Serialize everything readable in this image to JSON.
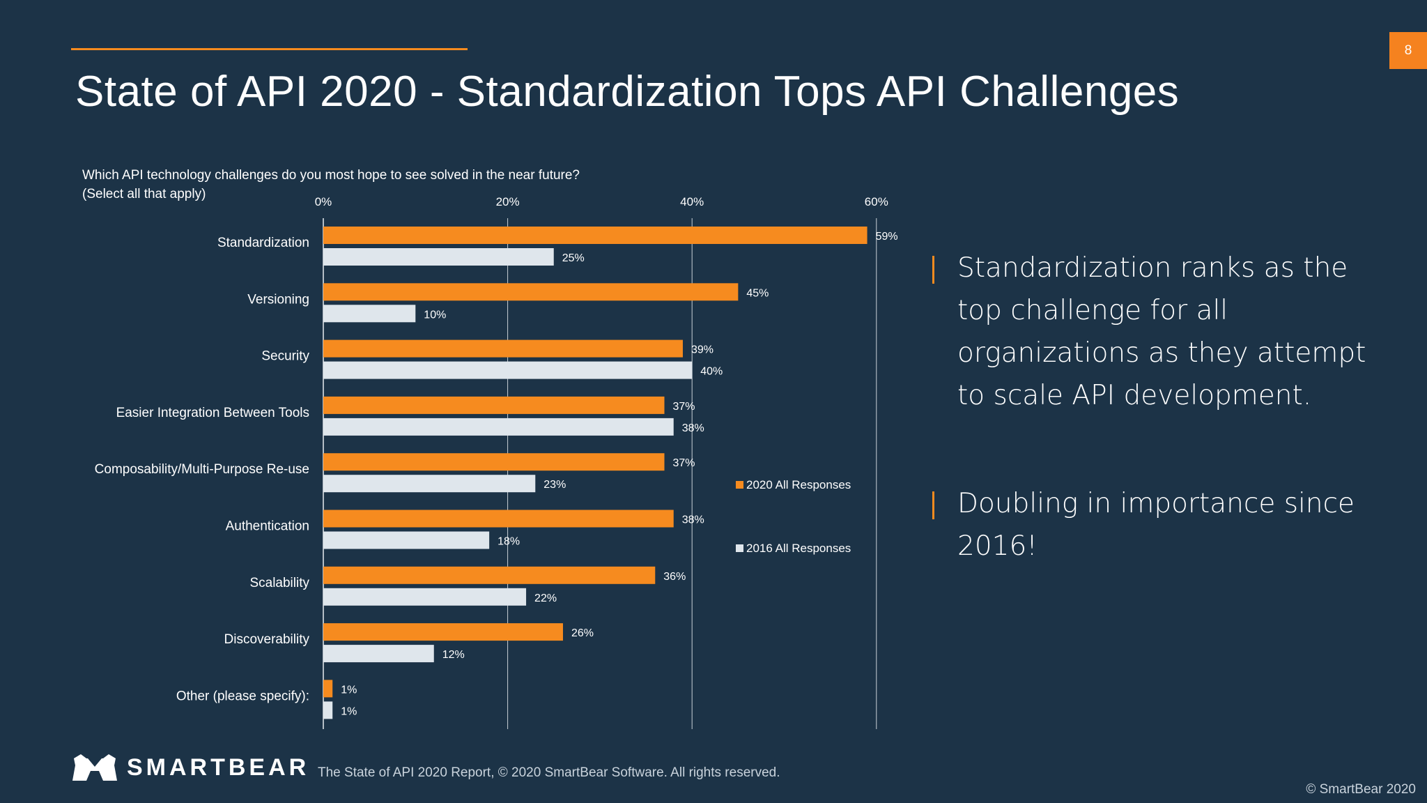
{
  "slide": {
    "page_number": "8",
    "title": "State of API 2020 - Standardization Tops API Challenges",
    "question_line1": "Which API technology challenges do you most hope to see solved in the near future?",
    "question_line2": "(Select all that apply)"
  },
  "bullets": [
    "Standardization ranks as the top challenge for all organizations as they attempt to scale API development.",
    "Doubling in importance since 2016!"
  ],
  "footer": {
    "logo_text": "SMARTBEAR",
    "report_note": "The State of API 2020 Report, © 2020 SmartBear Software. All rights reserved.",
    "copyright": "© SmartBear 2020"
  },
  "colors": {
    "background": "#1c3347",
    "accent": "#f68b1f",
    "series_2020": "#f68b1f",
    "series_2016": "#dfe6ec",
    "gridline": "#e8edf1"
  },
  "chart_data": {
    "type": "bar",
    "orientation": "horizontal",
    "categories": [
      "Standardization",
      "Versioning",
      "Security",
      "Easier Integration Between Tools",
      "Composability/Multi-Purpose Re-use",
      "Authentication",
      "Scalability",
      "Discoverability",
      "Other (please specify):"
    ],
    "series": [
      {
        "name": "2020 All Responses",
        "values": [
          59,
          45,
          39,
          37,
          37,
          38,
          36,
          26,
          1
        ]
      },
      {
        "name": "2016 All Responses",
        "values": [
          25,
          10,
          40,
          38,
          23,
          18,
          22,
          12,
          1
        ]
      }
    ],
    "xlim": [
      0,
      60
    ],
    "xticks": [
      "0%",
      "20%",
      "40%",
      "60%"
    ],
    "value_suffix": "%",
    "grid": true,
    "legend_position": "right"
  }
}
